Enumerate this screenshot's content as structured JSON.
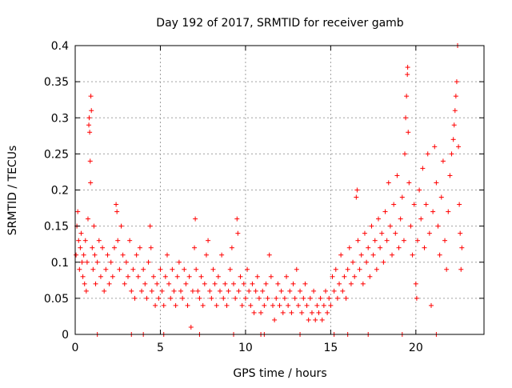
{
  "chart_data": {
    "type": "scatter",
    "title": "Day 192 of 2017, SRMTID for receiver gamb",
    "xlabel": "GPS time / hours",
    "ylabel": "SRMTID / TECUs",
    "xlim": [
      0,
      24
    ],
    "ylim": [
      0,
      0.4
    ],
    "x_ticks": [
      0,
      5,
      10,
      15,
      20
    ],
    "x_tick_labels": [
      "0",
      "5",
      "10",
      "15",
      "20"
    ],
    "y_ticks": [
      0,
      0.05,
      0.1,
      0.15,
      0.2,
      0.25,
      0.3,
      0.35,
      0.4
    ],
    "y_tick_labels": [
      "0",
      "0.05",
      "0.1",
      "0.15",
      "0.2",
      "0.25",
      "0.3",
      "0.35",
      "0.4"
    ],
    "grid": true,
    "marker": "+",
    "color": "#ff0000",
    "series": [
      {
        "name": "SRMTID",
        "points": [
          [
            0.05,
            0.11
          ],
          [
            0.1,
            0.15
          ],
          [
            0.15,
            0.17
          ],
          [
            0.2,
            0.13
          ],
          [
            0.25,
            0.09
          ],
          [
            0.3,
            0.12
          ],
          [
            0.35,
            0.14
          ],
          [
            0.4,
            0.1
          ],
          [
            0.45,
            0.08
          ],
          [
            0.5,
            0.11
          ],
          [
            0.55,
            0.07
          ],
          [
            0.6,
            0.13
          ],
          [
            0.65,
            0.06
          ],
          [
            0.7,
            0.1
          ],
          [
            0.75,
            0.16
          ],
          [
            0.8,
            0.29
          ],
          [
            0.82,
            0.3
          ],
          [
            0.85,
            0.28
          ],
          [
            0.88,
            0.24
          ],
          [
            0.9,
            0.21
          ],
          [
            0.92,
            0.33
          ],
          [
            0.95,
            0.31
          ],
          [
            1.0,
            0.12
          ],
          [
            1.05,
            0.09
          ],
          [
            1.1,
            0.15
          ],
          [
            1.15,
            0.11
          ],
          [
            1.2,
            0.07
          ],
          [
            1.3,
            0.1
          ],
          [
            1.4,
            0.13
          ],
          [
            1.5,
            0.08
          ],
          [
            1.6,
            0.12
          ],
          [
            1.7,
            0.06
          ],
          [
            1.8,
            0.09
          ],
          [
            1.9,
            0.11
          ],
          [
            2.0,
            0.07
          ],
          [
            2.1,
            0.1
          ],
          [
            2.2,
            0.08
          ],
          [
            2.3,
            0.12
          ],
          [
            2.4,
            0.18
          ],
          [
            2.45,
            0.17
          ],
          [
            2.5,
            0.13
          ],
          [
            2.6,
            0.09
          ],
          [
            2.7,
            0.15
          ],
          [
            2.8,
            0.11
          ],
          [
            2.9,
            0.07
          ],
          [
            3.0,
            0.1
          ],
          [
            3.1,
            0.08
          ],
          [
            3.2,
            0.13
          ],
          [
            3.3,
            0.06
          ],
          [
            3.4,
            0.09
          ],
          [
            3.5,
            0.05
          ],
          [
            3.6,
            0.11
          ],
          [
            3.7,
            0.08
          ],
          [
            3.8,
            0.12
          ],
          [
            3.9,
            0.06
          ],
          [
            4.0,
            0.09
          ],
          [
            4.1,
            0.07
          ],
          [
            4.2,
            0.05
          ],
          [
            4.3,
            0.1
          ],
          [
            4.4,
            0.15
          ],
          [
            4.45,
            0.12
          ],
          [
            4.5,
            0.06
          ],
          [
            4.6,
            0.08
          ],
          [
            4.7,
            0.04
          ],
          [
            4.8,
            0.07
          ],
          [
            4.9,
            0.05
          ],
          [
            5.0,
            0.09
          ],
          [
            5.1,
            0.06
          ],
          [
            5.2,
            0.04
          ],
          [
            5.3,
            0.08
          ],
          [
            5.4,
            0.11
          ],
          [
            5.5,
            0.07
          ],
          [
            5.6,
            0.05
          ],
          [
            5.7,
            0.09
          ],
          [
            5.8,
            0.06
          ],
          [
            5.9,
            0.04
          ],
          [
            6.0,
            0.08
          ],
          [
            6.1,
            0.1
          ],
          [
            6.2,
            0.06
          ],
          [
            6.3,
            0.05
          ],
          [
            6.4,
            0.09
          ],
          [
            6.5,
            0.07
          ],
          [
            6.6,
            0.04
          ],
          [
            6.7,
            0.08
          ],
          [
            6.8,
            0.01
          ],
          [
            6.9,
            0.06
          ],
          [
            7.0,
            0.12
          ],
          [
            7.05,
            0.16
          ],
          [
            7.1,
            0.09
          ],
          [
            7.2,
            0.06
          ],
          [
            7.3,
            0.05
          ],
          [
            7.4,
            0.08
          ],
          [
            7.5,
            0.04
          ],
          [
            7.6,
            0.07
          ],
          [
            7.7,
            0.11
          ],
          [
            7.8,
            0.13
          ],
          [
            7.9,
            0.06
          ],
          [
            8.0,
            0.05
          ],
          [
            8.1,
            0.09
          ],
          [
            8.2,
            0.07
          ],
          [
            8.3,
            0.04
          ],
          [
            8.4,
            0.08
          ],
          [
            8.5,
            0.06
          ],
          [
            8.6,
            0.11
          ],
          [
            8.7,
            0.05
          ],
          [
            8.8,
            0.07
          ],
          [
            8.9,
            0.04
          ],
          [
            9.0,
            0.06
          ],
          [
            9.1,
            0.09
          ],
          [
            9.2,
            0.12
          ],
          [
            9.3,
            0.07
          ],
          [
            9.4,
            0.05
          ],
          [
            9.5,
            0.16
          ],
          [
            9.55,
            0.14
          ],
          [
            9.6,
            0.06
          ],
          [
            9.7,
            0.08
          ],
          [
            9.8,
            0.04
          ],
          [
            9.9,
            0.07
          ],
          [
            10.0,
            0.05
          ],
          [
            10.1,
            0.09
          ],
          [
            10.2,
            0.06
          ],
          [
            10.3,
            0.04
          ],
          [
            10.4,
            0.07
          ],
          [
            10.5,
            0.03
          ],
          [
            10.6,
            0.06
          ],
          [
            10.7,
            0.08
          ],
          [
            10.8,
            0.05
          ],
          [
            10.9,
            0.03
          ],
          [
            11.0,
            0.06
          ],
          [
            11.1,
            0.04
          ],
          [
            11.2,
            0.07
          ],
          [
            11.3,
            0.05
          ],
          [
            11.4,
            0.11
          ],
          [
            11.5,
            0.08
          ],
          [
            11.6,
            0.04
          ],
          [
            11.7,
            0.02
          ],
          [
            11.8,
            0.05
          ],
          [
            11.9,
            0.07
          ],
          [
            12.0,
            0.04
          ],
          [
            12.1,
            0.06
          ],
          [
            12.2,
            0.03
          ],
          [
            12.3,
            0.05
          ],
          [
            12.4,
            0.08
          ],
          [
            12.5,
            0.04
          ],
          [
            12.6,
            0.06
          ],
          [
            12.7,
            0.03
          ],
          [
            12.8,
            0.07
          ],
          [
            12.9,
            0.05
          ],
          [
            13.0,
            0.09
          ],
          [
            13.1,
            0.04
          ],
          [
            13.2,
            0.06
          ],
          [
            13.3,
            0.03
          ],
          [
            13.4,
            0.05
          ],
          [
            13.5,
            0.07
          ],
          [
            13.6,
            0.04
          ],
          [
            13.7,
            0.02
          ],
          [
            13.8,
            0.05
          ],
          [
            13.9,
            0.03
          ],
          [
            14.0,
            0.06
          ],
          [
            14.1,
            0.02
          ],
          [
            14.2,
            0.04
          ],
          [
            14.3,
            0.03
          ],
          [
            14.4,
            0.05
          ],
          [
            14.5,
            0.02
          ],
          [
            14.6,
            0.04
          ],
          [
            14.7,
            0.06
          ],
          [
            14.8,
            0.03
          ],
          [
            14.9,
            0.05
          ],
          [
            15.0,
            0.04
          ],
          [
            15.1,
            0.08
          ],
          [
            15.2,
            0.06
          ],
          [
            15.3,
            0.09
          ],
          [
            15.4,
            0.05
          ],
          [
            15.5,
            0.07
          ],
          [
            15.6,
            0.11
          ],
          [
            15.7,
            0.06
          ],
          [
            15.8,
            0.08
          ],
          [
            15.9,
            0.05
          ],
          [
            16.0,
            0.09
          ],
          [
            16.1,
            0.12
          ],
          [
            16.2,
            0.07
          ],
          [
            16.3,
            0.1
          ],
          [
            16.4,
            0.08
          ],
          [
            16.5,
            0.19
          ],
          [
            16.55,
            0.2
          ],
          [
            16.6,
            0.13
          ],
          [
            16.7,
            0.09
          ],
          [
            16.8,
            0.11
          ],
          [
            16.9,
            0.07
          ],
          [
            17.0,
            0.14
          ],
          [
            17.1,
            0.1
          ],
          [
            17.2,
            0.12
          ],
          [
            17.3,
            0.08
          ],
          [
            17.4,
            0.15
          ],
          [
            17.5,
            0.11
          ],
          [
            17.6,
            0.13
          ],
          [
            17.7,
            0.09
          ],
          [
            17.8,
            0.16
          ],
          [
            17.9,
            0.12
          ],
          [
            18.0,
            0.14
          ],
          [
            18.1,
            0.1
          ],
          [
            18.2,
            0.17
          ],
          [
            18.3,
            0.13
          ],
          [
            18.4,
            0.21
          ],
          [
            18.5,
            0.15
          ],
          [
            18.6,
            0.11
          ],
          [
            18.7,
            0.18
          ],
          [
            18.8,
            0.14
          ],
          [
            18.9,
            0.22
          ],
          [
            19.0,
            0.12
          ],
          [
            19.1,
            0.16
          ],
          [
            19.2,
            0.19
          ],
          [
            19.3,
            0.13
          ],
          [
            19.35,
            0.25
          ],
          [
            19.4,
            0.3
          ],
          [
            19.45,
            0.33
          ],
          [
            19.5,
            0.36
          ],
          [
            19.52,
            0.37
          ],
          [
            19.55,
            0.28
          ],
          [
            19.6,
            0.21
          ],
          [
            19.7,
            0.15
          ],
          [
            19.8,
            0.11
          ],
          [
            19.9,
            0.18
          ],
          [
            20.0,
            0.07
          ],
          [
            20.05,
            0.05
          ],
          [
            20.1,
            0.13
          ],
          [
            20.2,
            0.2
          ],
          [
            20.3,
            0.16
          ],
          [
            20.4,
            0.23
          ],
          [
            20.5,
            0.12
          ],
          [
            20.6,
            0.18
          ],
          [
            20.7,
            0.25
          ],
          [
            20.8,
            0.14
          ],
          [
            20.9,
            0.04
          ],
          [
            21.0,
            0.17
          ],
          [
            21.1,
            0.26
          ],
          [
            21.2,
            0.21
          ],
          [
            21.3,
            0.15
          ],
          [
            21.4,
            0.11
          ],
          [
            21.5,
            0.19
          ],
          [
            21.6,
            0.24
          ],
          [
            21.7,
            0.13
          ],
          [
            21.8,
            0.09
          ],
          [
            21.9,
            0.17
          ],
          [
            22.0,
            0.22
          ],
          [
            22.1,
            0.25
          ],
          [
            22.2,
            0.27
          ],
          [
            22.25,
            0.29
          ],
          [
            22.3,
            0.31
          ],
          [
            22.35,
            0.33
          ],
          [
            22.4,
            0.35
          ],
          [
            22.45,
            0.4
          ],
          [
            22.5,
            0.26
          ],
          [
            22.55,
            0.18
          ],
          [
            22.6,
            0.14
          ],
          [
            22.65,
            0.09
          ],
          [
            22.7,
            0.12
          ]
        ]
      }
    ],
    "zero_markers_x": [
      1.3,
      3.3,
      4.0,
      5.2,
      7.3,
      9.3,
      10.9,
      11.1,
      13.2,
      15.2,
      16.0,
      17.2,
      19.2,
      21.2
    ]
  }
}
